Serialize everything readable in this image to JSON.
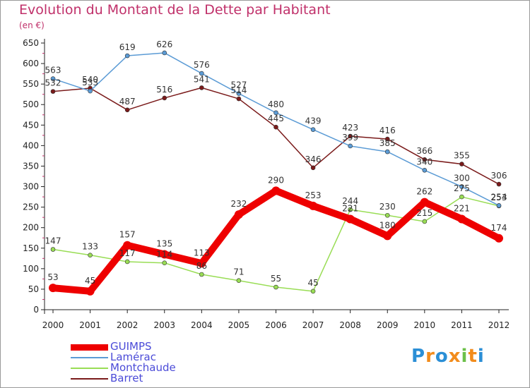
{
  "chart_data": {
    "type": "line",
    "title": "Evolution du Montant de la Dette par Habitant",
    "subtitle": "(en €)",
    "xlabel": "",
    "ylabel": "",
    "x": [
      "2000",
      "2001",
      "2002",
      "2003",
      "2004",
      "2005",
      "2006",
      "2007",
      "2008",
      "2009",
      "2010",
      "2011",
      "2012"
    ],
    "ylim": [
      0,
      650
    ],
    "yticks": [
      0,
      50,
      100,
      150,
      200,
      250,
      300,
      350,
      400,
      450,
      500,
      550,
      600,
      650
    ],
    "grid": false,
    "legend_position": "bottom-left",
    "series": [
      {
        "name": "GUIMPS",
        "color": "#ee0000",
        "values": [
          53,
          45,
          157,
          135,
          113,
          232,
          290,
          253,
          221,
          180,
          262,
          221,
          174
        ]
      },
      {
        "name": "Lamérac",
        "color": "#5b9bd5",
        "values": [
          563,
          533,
          619,
          626,
          576,
          527,
          480,
          439,
          399,
          385,
          340,
          300,
          254
        ]
      },
      {
        "name": "Montchaude",
        "color": "#99dd55",
        "values": [
          147,
          133,
          117,
          114,
          86,
          71,
          55,
          45,
          244,
          230,
          215,
          275,
          253
        ]
      },
      {
        "name": "Barret",
        "color": "#7a1a1a",
        "values": [
          532,
          540,
          487,
          516,
          541,
          514,
          445,
          346,
          423,
          416,
          366,
          355,
          306
        ]
      }
    ]
  },
  "brand": {
    "text": "Proxiti",
    "letters": [
      "P",
      "r",
      "o",
      "x",
      "i",
      "t",
      "i"
    ],
    "colors": [
      "#2b8fd6",
      "#f28c1c",
      "#2b8fd6",
      "#f28c1c",
      "#6cc04a",
      "#f28c1c",
      "#2b8fd6"
    ]
  }
}
